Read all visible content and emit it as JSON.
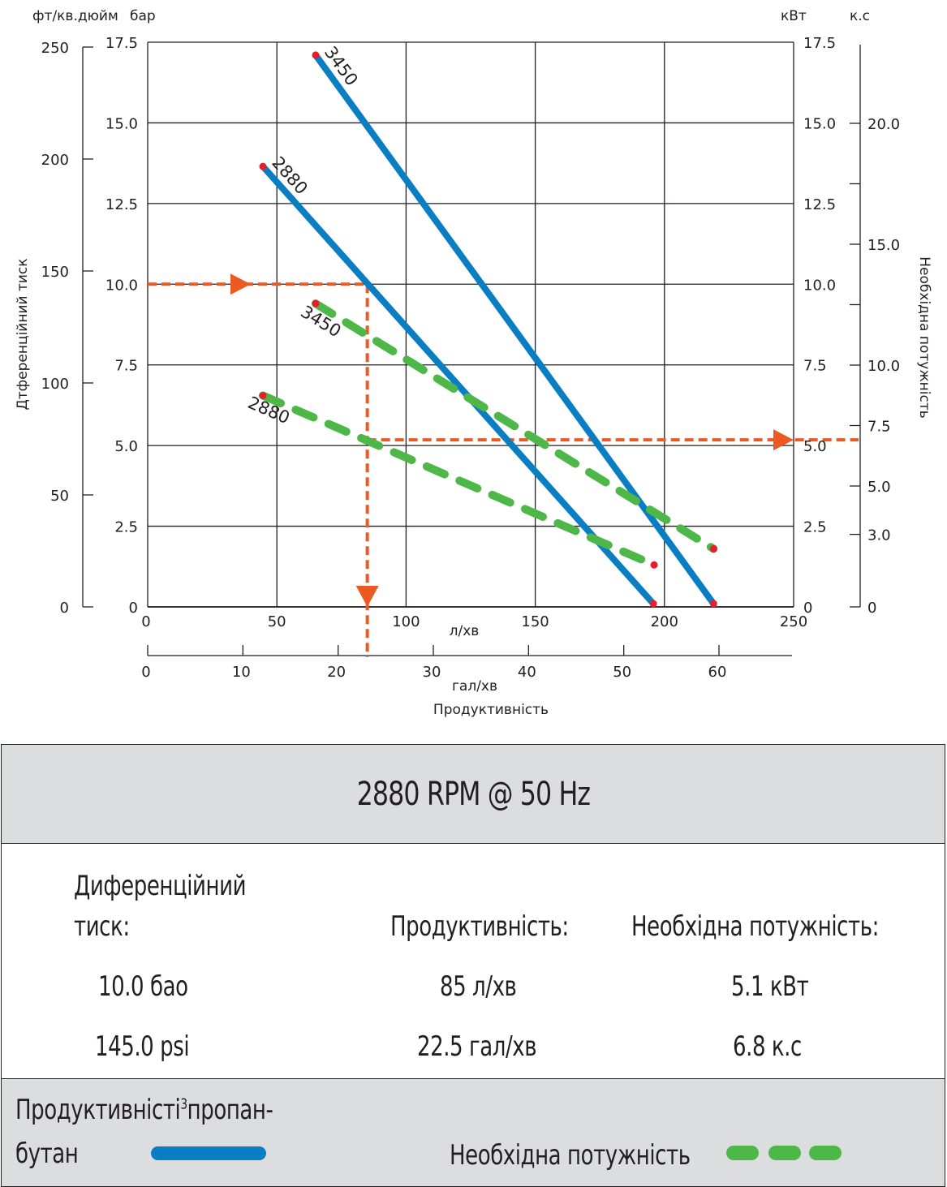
{
  "chart_data": {
    "type": "line",
    "x_primary": {
      "unit": "л/хв",
      "ticks": [
        0,
        50,
        100,
        150,
        200,
        250
      ],
      "range": [
        0,
        250
      ]
    },
    "x_secondary": {
      "unit": "гал/хв",
      "ticks": [
        0,
        10,
        20,
        30,
        40,
        50,
        60
      ],
      "range": [
        0,
        66
      ]
    },
    "xlabel": "Продуктивність",
    "y_left_bar": {
      "unit": "бар",
      "ticks": [
        "0",
        "2.5",
        "5.0",
        "7.5",
        "10.0",
        "12.5",
        "15.0",
        "17.5"
      ],
      "range": [
        0,
        17.5
      ]
    },
    "y_left_psi": {
      "unit": "фт/кв.дюйм",
      "ticks": [
        0,
        50,
        100,
        150,
        200,
        250
      ],
      "range": [
        0,
        253.75
      ]
    },
    "ylabel_left": "Дтференційний тиск",
    "y_right_kw": {
      "unit": "кВт",
      "ticks": [
        "0",
        "2.5",
        "5.0",
        "7.5",
        "10.0",
        "12.5",
        "15.0",
        "17.5"
      ],
      "range": [
        0,
        17.5
      ]
    },
    "y_right_hp": {
      "unit": "к.с",
      "ticks": [
        {
          "value": 0,
          "label": "0"
        },
        {
          "value": 3,
          "label": "3.0"
        },
        {
          "value": 5,
          "label": "5.0"
        },
        {
          "value": 7.5,
          "label": "7.5"
        },
        {
          "value": 10,
          "label": "10.0"
        },
        {
          "value": 12.5,
          "label": ""
        },
        {
          "value": 15,
          "label": "15.0"
        },
        {
          "value": 17.5,
          "label": ""
        },
        {
          "value": 20,
          "label": "20.0"
        }
      ],
      "range": [
        0,
        23.47
      ]
    },
    "ylabel_right": "Необхідна потужність",
    "grid": true,
    "series": [
      {
        "name": "Продуктивність 3450",
        "label": "3450",
        "axis": "bar",
        "style": "solid",
        "color": "#0a7ec2",
        "points": [
          [
            65,
            17.1
          ],
          [
            219,
            0.1
          ]
        ]
      },
      {
        "name": "Продуктивність 2880",
        "label": "2880",
        "axis": "bar",
        "style": "solid",
        "color": "#0a7ec2",
        "points": [
          [
            44.6,
            13.65
          ],
          [
            195.7,
            0.1
          ]
        ]
      },
      {
        "name": "Необхідна потужність 3450",
        "label": "3450",
        "axis": "kw",
        "style": "dashed",
        "color": "#4db848",
        "points": [
          [
            65,
            9.4
          ],
          [
            219,
            1.8
          ]
        ]
      },
      {
        "name": "Необхідна потужність 2880",
        "label": "2880",
        "axis": "kw",
        "style": "dashed",
        "color": "#4db848",
        "points": [
          [
            44.6,
            6.55
          ],
          [
            196,
            1.3
          ]
        ]
      }
    ],
    "guides": {
      "color": "#ec5a24",
      "pressure_bar": 10.0,
      "flow_lpm": 85,
      "power_kw": 5.1
    },
    "endpoint_color": "#e41e2b"
  },
  "result": {
    "title": "2880 RPM @ 50 Hz",
    "columns": [
      {
        "header_line1": "Диференційний",
        "header_line2": "тиск:",
        "value1": "10.0 бао",
        "value2": "145.0 psi"
      },
      {
        "header_line1": "",
        "header_line2": "Продуктивність:",
        "value1": "85 л/хв",
        "value2": "22.5 гал/хв"
      },
      {
        "header_line1": "",
        "header_line2": "Необхідна потужність:",
        "value1": "5.1 кВт",
        "value2": "6.8 к.с"
      }
    ]
  },
  "legend": {
    "flow_label_line1": "Продуктивністі",
    "flow_label_sup": "3",
    "flow_label_line1_rest": "пропан-",
    "flow_label_line2": "бутан",
    "flow_color": "#0a7ec2",
    "power_label": "Необхідна потужність",
    "power_color": "#4db848"
  }
}
